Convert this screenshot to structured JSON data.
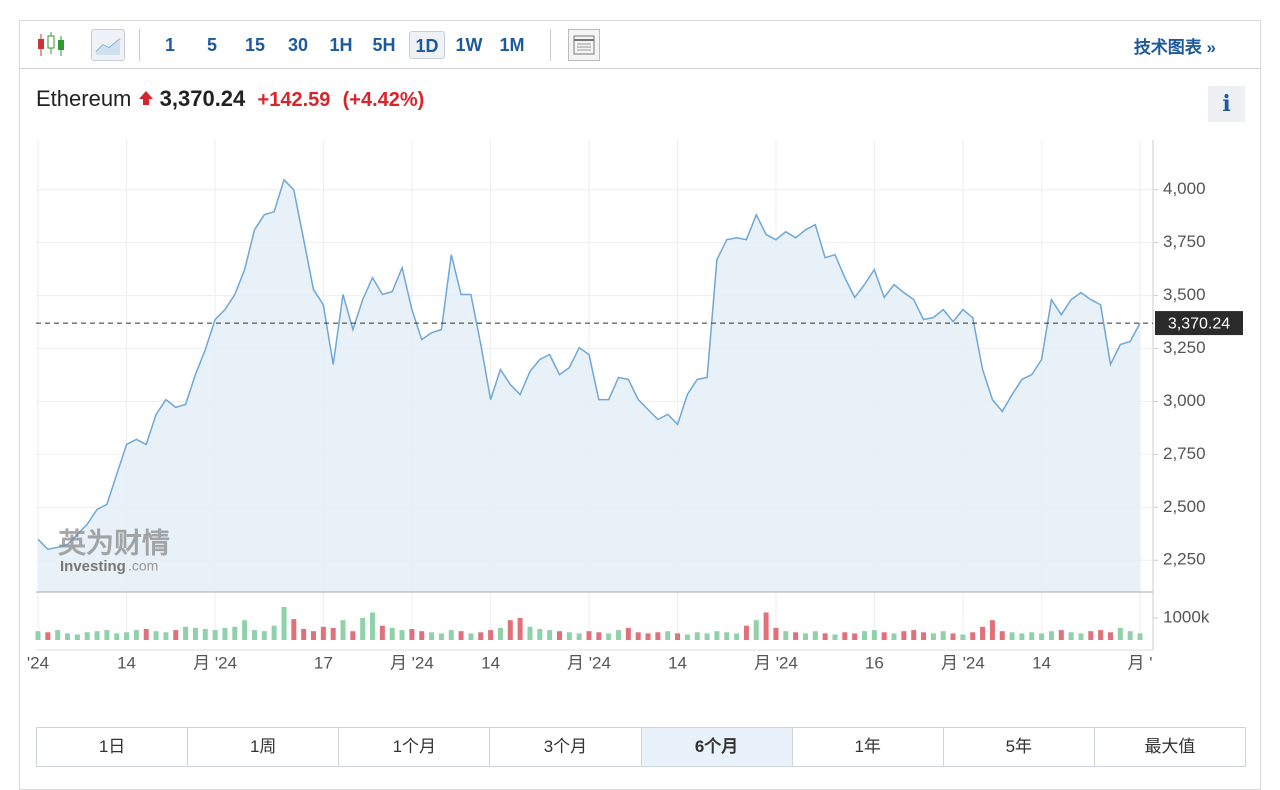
{
  "toolbar": {
    "intervals": [
      "1",
      "5",
      "15",
      "30",
      "1H",
      "5H",
      "1D",
      "1W",
      "1M"
    ],
    "active_interval": "1D",
    "link": "技术图表 »"
  },
  "header": {
    "name": "Ethereum",
    "price": "3,370.24",
    "change": "+142.59",
    "percent": "(+4.42%)"
  },
  "watermark": {
    "brand": "英为财情",
    "site": "Investing",
    "domain": ".com"
  },
  "chart_data": {
    "type": "line",
    "color": "#6fa8d6",
    "values": [
      2349,
      2302,
      2311,
      2325,
      2372,
      2420,
      2490,
      2514,
      2656,
      2797,
      2821,
      2797,
      2939,
      3009,
      2972,
      2986,
      3127,
      3245,
      3387,
      3434,
      3505,
      3623,
      3811,
      3882,
      3896,
      4047,
      4000,
      3764,
      3528,
      3457,
      3175,
      3505,
      3340,
      3481,
      3585,
      3505,
      3519,
      3632,
      3434,
      3292,
      3325,
      3340,
      3693,
      3505,
      3505,
      3269,
      3009,
      3151,
      3080,
      3033,
      3142,
      3198,
      3222,
      3127,
      3160,
      3254,
      3222,
      3009,
      3009,
      3113,
      3104,
      3009,
      2962,
      2915,
      2939,
      2892,
      3033,
      3104,
      3113,
      3670,
      3764,
      3773,
      3764,
      3882,
      3788,
      3764,
      3802,
      3773,
      3811,
      3835,
      3679,
      3693,
      3585,
      3491,
      3552,
      3623,
      3491,
      3552,
      3514,
      3481,
      3387,
      3396,
      3434,
      3377,
      3434,
      3396,
      3151,
      3009,
      2953,
      3033,
      3104,
      3127,
      3198,
      3481,
      3410,
      3481,
      3514,
      3481,
      3457,
      3175,
      3269,
      3283,
      3370
    ],
    "ylim": [
      2100,
      4235
    ],
    "yticks": [
      {
        "value": 2250,
        "label": "2,250"
      },
      {
        "value": 2500,
        "label": "2,500"
      },
      {
        "value": 2750,
        "label": "2,750"
      },
      {
        "value": 3000,
        "label": "3,000"
      },
      {
        "value": 3250,
        "label": "3,250"
      },
      {
        "value": 3500,
        "label": "3,500"
      },
      {
        "value": 3750,
        "label": "3,750"
      },
      {
        "value": 4000,
        "label": "4,000"
      }
    ],
    "xticks": [
      {
        "value": 0,
        "label": "'24"
      },
      {
        "value": 9,
        "label": "14"
      },
      {
        "value": 18,
        "label": "月 '24"
      },
      {
        "value": 29,
        "label": "17"
      },
      {
        "value": 38,
        "label": "月 '24"
      },
      {
        "value": 46,
        "label": "14"
      },
      {
        "value": 56,
        "label": "月 '24"
      },
      {
        "value": 65,
        "label": "14"
      },
      {
        "value": 75,
        "label": "月 '24"
      },
      {
        "value": 85,
        "label": "16"
      },
      {
        "value": 94,
        "label": "月 '24"
      },
      {
        "value": 102,
        "label": "14"
      },
      {
        "value": 112,
        "label": "月 '"
      }
    ],
    "grid": true,
    "last": {
      "value": 3370.24,
      "label": "3,370.24"
    },
    "volume": {
      "up_color": "#8fd1a8",
      "down_color": "#e0707a",
      "ylim": [
        0,
        2180000
      ],
      "yticks": [
        {
          "value": 1000000,
          "label": "1000k"
        }
      ],
      "values": [
        400000,
        350000,
        450000,
        300000,
        250000,
        350000,
        400000,
        450000,
        300000,
        350000,
        450000,
        500000,
        400000,
        350000,
        450000,
        600000,
        550000,
        500000,
        450000,
        550000,
        600000,
        900000,
        450000,
        400000,
        650000,
        1500000,
        950000,
        500000,
        400000,
        600000,
        550000,
        900000,
        400000,
        1000000,
        1250000,
        650000,
        550000,
        450000,
        500000,
        400000,
        350000,
        300000,
        450000,
        400000,
        300000,
        350000,
        450000,
        550000,
        900000,
        1000000,
        600000,
        500000,
        450000,
        400000,
        350000,
        300000,
        400000,
        350000,
        300000,
        450000,
        550000,
        350000,
        300000,
        350000,
        400000,
        300000,
        250000,
        350000,
        300000,
        400000,
        350000,
        300000,
        650000,
        900000,
        1250000,
        550000,
        400000,
        350000,
        300000,
        400000,
        300000,
        250000,
        350000,
        300000,
        400000,
        450000,
        350000,
        300000,
        400000,
        450000,
        350000,
        300000,
        400000,
        300000,
        250000,
        350000,
        600000,
        900000,
        400000,
        350000,
        300000,
        350000,
        300000,
        400000,
        450000,
        350000,
        300000,
        400000,
        450000,
        350000,
        550000,
        400000,
        300000
      ]
    }
  },
  "ranges": {
    "options": [
      "1日",
      "1周",
      "1个月",
      "3个月",
      "6个月",
      "1年",
      "5年",
      "最大值"
    ],
    "active": "6个月"
  }
}
